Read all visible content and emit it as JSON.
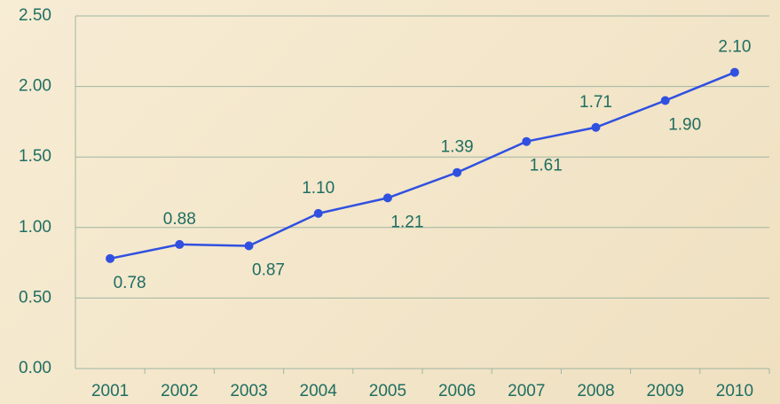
{
  "chart_data": {
    "type": "line",
    "categories": [
      "2001",
      "2002",
      "2003",
      "2004",
      "2005",
      "2006",
      "2007",
      "2008",
      "2009",
      "2010"
    ],
    "series": [
      {
        "color": "#3050e0",
        "values": [
          0.78,
          0.88,
          0.87,
          1.1,
          1.21,
          1.39,
          1.61,
          1.71,
          1.9,
          2.1
        ],
        "value_labels": [
          "0.78",
          "0.88",
          "0.87",
          "1.10",
          "1.21",
          "1.39",
          "1.61",
          "1.71",
          "1.90",
          "2.10"
        ]
      }
    ],
    "ylim": [
      0,
      2.5
    ],
    "yticks": [
      {
        "value": 0,
        "label": "0.00"
      },
      {
        "value": 0.5,
        "label": "0.50"
      },
      {
        "value": 1,
        "label": "1.00"
      },
      {
        "value": 1.5,
        "label": "1.50"
      },
      {
        "value": 2,
        "label": "2.00"
      },
      {
        "value": 2.5,
        "label": "2.50"
      }
    ],
    "grid": true
  }
}
